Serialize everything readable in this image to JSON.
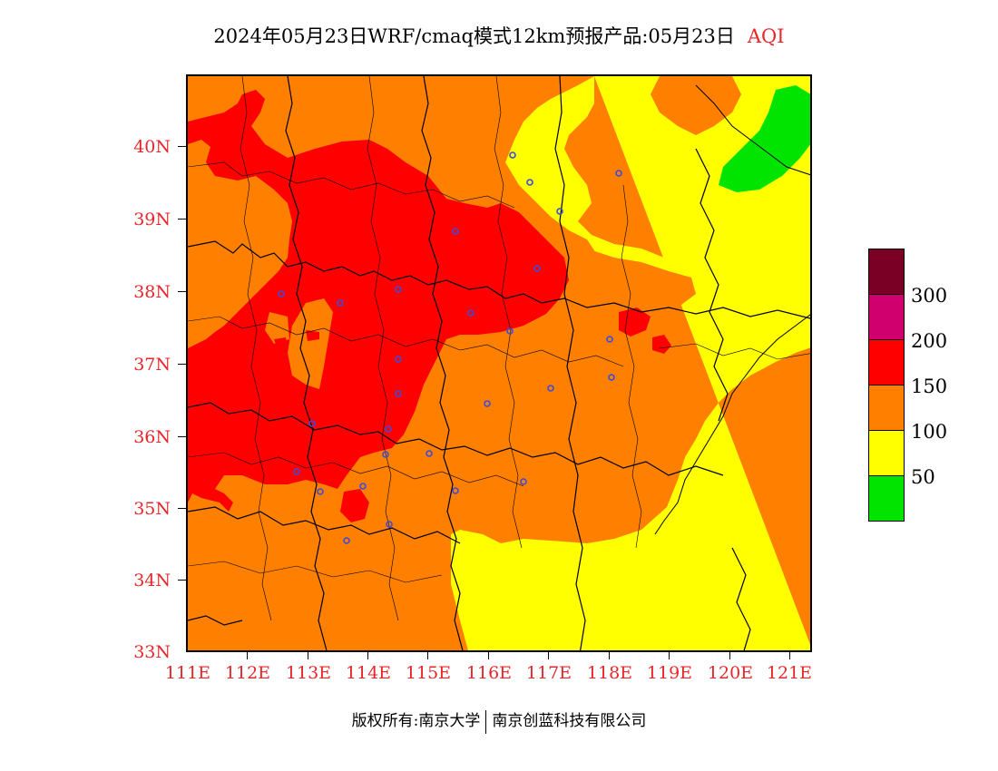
{
  "title": {
    "text": "2024年05月23日WRF/cmaq模式12km预报产品:05月23日",
    "product": "AQI"
  },
  "axes": {
    "lat_labels": [
      "40N",
      "39N",
      "38N",
      "37N",
      "36N",
      "35N",
      "34N",
      "33N"
    ],
    "lon_labels": [
      "111E",
      "112E",
      "113E",
      "114E",
      "115E",
      "116E",
      "117E",
      "118E",
      "119E",
      "120E",
      "121E"
    ],
    "lat_range": [
      33,
      41
    ],
    "lon_range": [
      111,
      121.4
    ]
  },
  "legend": {
    "labels": [
      "300",
      "200",
      "150",
      "100",
      "50"
    ],
    "colors": [
      "#7a0026",
      "#d0006f",
      "#ff0000",
      "#ff8000",
      "#ffff00",
      "#00e400"
    ]
  },
  "colors": {
    "band_50": "#00e400",
    "band_100": "#ffff00",
    "band_150": "#ff8000",
    "band_200": "#ff0000",
    "station": "#3c4bdc",
    "label": "#e8262a"
  },
  "footer": {
    "copyright": "版权所有:南京大学",
    "company": "南京创蓝科技有限公司"
  }
}
